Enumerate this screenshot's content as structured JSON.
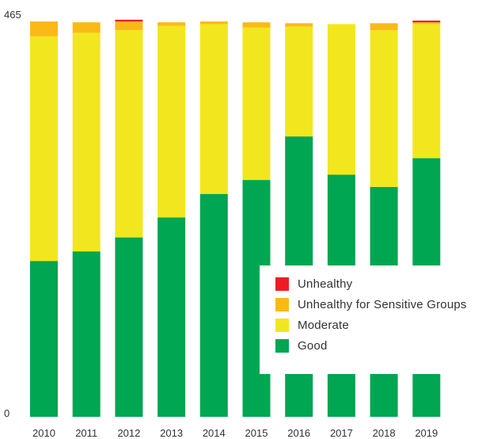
{
  "chart_data": {
    "type": "bar",
    "stacked": true,
    "categories": [
      "2010",
      "2011",
      "2012",
      "2013",
      "2014",
      "2015",
      "2016",
      "2017",
      "2018",
      "2019"
    ],
    "series": [
      {
        "name": "Good",
        "color": "#00a651",
        "values": [
          179,
          190,
          206,
          229,
          256,
          272,
          322,
          278,
          264,
          297
        ]
      },
      {
        "name": "Moderate",
        "color": "#f2e71e",
        "values": [
          258,
          251,
          238,
          220,
          195,
          175,
          126,
          173,
          180,
          154
        ]
      },
      {
        "name": "Unhealthy for Sensitive Groups",
        "color": "#fbb917",
        "values": [
          17,
          12,
          10,
          4,
          3,
          6,
          4,
          0,
          8,
          2
        ]
      },
      {
        "name": "Unhealthy",
        "color": "#ed1c24",
        "values": [
          0,
          0,
          2,
          0,
          0,
          0,
          0,
          0,
          0,
          2
        ]
      }
    ],
    "ylim": [
      0,
      465
    ],
    "y_tick_labels": [
      "0",
      "465"
    ],
    "grid": false,
    "legend_position": "bottom-right",
    "legend_order": [
      "Unhealthy",
      "Unhealthy for Sensitive Groups",
      "Moderate",
      "Good"
    ]
  }
}
